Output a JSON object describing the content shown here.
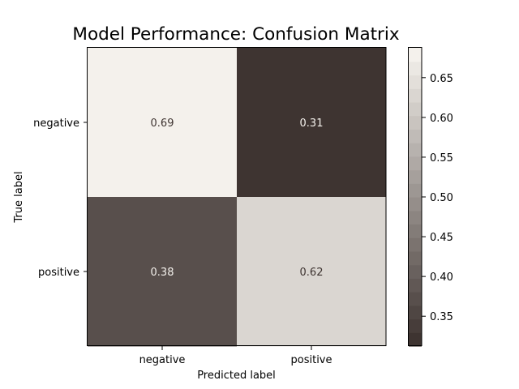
{
  "chart_data": {
    "type": "heatmap",
    "title": "Model Performance: Confusion Matrix",
    "xlabel": "Predicted label",
    "ylabel": "True label",
    "x_categories": [
      "negative",
      "positive"
    ],
    "y_categories": [
      "negative",
      "positive"
    ],
    "values": [
      [
        0.69,
        0.31
      ],
      [
        0.38,
        0.62
      ]
    ],
    "value_labels": [
      [
        "0.69",
        "0.31"
      ],
      [
        "0.38",
        "0.62"
      ]
    ],
    "colorbar": {
      "range": [
        0.3125,
        0.6875
      ],
      "ticks": [
        0.35,
        0.4,
        0.45,
        0.5,
        0.55,
        0.6,
        0.65
      ],
      "tick_labels": [
        "0.35",
        "0.40",
        "0.45",
        "0.50",
        "0.55",
        "0.60",
        "0.65"
      ],
      "bands": 22
    },
    "colormap": {
      "low": "#3e3431",
      "high": "#f4f1ec"
    },
    "text_colors": {
      "on_dark": "#f4f1ec",
      "on_light": "#3e3431"
    }
  }
}
